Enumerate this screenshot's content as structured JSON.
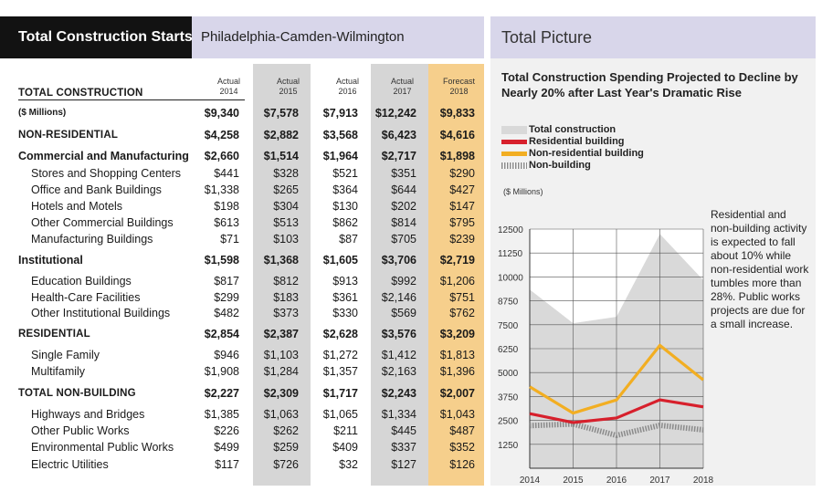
{
  "table": {
    "title": "Total Construction Starts",
    "region": "Philadelphia-Camden-Wilmington",
    "total_construction_label": "TOTAL CONSTRUCTION",
    "columns": [
      {
        "line1": "Actual",
        "line2": "2014"
      },
      {
        "line1": "Actual",
        "line2": "2015"
      },
      {
        "line1": "Actual",
        "line2": "2016"
      },
      {
        "line1": "Actual",
        "line2": "2017"
      },
      {
        "line1": "Forecast",
        "line2": "2018"
      }
    ],
    "rows": [
      {
        "label": "($ Millions)",
        "values": [
          "$9,340",
          "$7,578",
          "$7,913",
          "$12,242",
          "$9,833"
        ]
      },
      {
        "label": "NON-RESIDENTIAL",
        "values": [
          "$4,258",
          "$2,882",
          "$3,568",
          "$6,423",
          "$4,616"
        ]
      },
      {
        "label": "Commercial and Manufacturing",
        "values": [
          "$2,660",
          "$1,514",
          "$1,964",
          "$2,717",
          "$1,898"
        ]
      },
      {
        "label": "Stores and Shopping Centers",
        "values": [
          "$441",
          "$328",
          "$521",
          "$351",
          "$290"
        ]
      },
      {
        "label": "Office and Bank Buildings",
        "values": [
          "$1,338",
          "$265",
          "$364",
          "$644",
          "$427"
        ]
      },
      {
        "label": "Hotels and Motels",
        "values": [
          "$198",
          "$304",
          "$130",
          "$202",
          "$147"
        ]
      },
      {
        "label": "Other Commercial Buildings",
        "values": [
          "$613",
          "$513",
          "$862",
          "$814",
          "$795"
        ]
      },
      {
        "label": "Manufacturing Buildings",
        "values": [
          "$71",
          "$103",
          "$87",
          "$705",
          "$239"
        ]
      },
      {
        "label": "Institutional",
        "values": [
          "$1,598",
          "$1,368",
          "$1,605",
          "$3,706",
          "$2,719"
        ]
      },
      {
        "label": "Education Buildings",
        "values": [
          "$817",
          "$812",
          "$913",
          "$992",
          "$1,206"
        ]
      },
      {
        "label": "Health-Care Facilities",
        "values": [
          "$299",
          "$183",
          "$361",
          "$2,146",
          "$751"
        ]
      },
      {
        "label": "Other Institutional Buildings",
        "values": [
          "$482",
          "$373",
          "$330",
          "$569",
          "$762"
        ]
      },
      {
        "label": "RESIDENTIAL",
        "values": [
          "$2,854",
          "$2,387",
          "$2,628",
          "$3,576",
          "$3,209"
        ]
      },
      {
        "label": "Single Family",
        "values": [
          "$946",
          "$1,103",
          "$1,272",
          "$1,412",
          "$1,813"
        ]
      },
      {
        "label": "Multifamily",
        "values": [
          "$1,908",
          "$1,284",
          "$1,357",
          "$2,163",
          "$1,396"
        ]
      },
      {
        "label": "TOTAL NON-BUILDING",
        "values": [
          "$2,227",
          "$2,309",
          "$1,717",
          "$2,243",
          "$2,007"
        ]
      },
      {
        "label": "Highways and Bridges",
        "values": [
          "$1,385",
          "$1,063",
          "$1,065",
          "$1,334",
          "$1,043"
        ]
      },
      {
        "label": "Other Public Works",
        "values": [
          "$226",
          "$262",
          "$211",
          "$445",
          "$487"
        ]
      },
      {
        "label": "Environmental Public Works",
        "values": [
          "$499",
          "$259",
          "$409",
          "$337",
          "$352"
        ]
      },
      {
        "label": "Electric Utilities",
        "values": [
          "$117",
          "$726",
          "$32",
          "$127",
          "$126"
        ]
      }
    ]
  },
  "panel": {
    "title": "Total Picture",
    "chart_title": "Total Construction Spending Projected to Decline by Nearly 20% after Last Year's Dramatic Rise",
    "units": "($ Millions)",
    "annotation": "Residential and non-building activity is expected to fall about 10% while non-residential work tumbles more than 28%. Public works projects are due for a small increase."
  },
  "chart_data": {
    "type": "line",
    "x": [
      2014,
      2015,
      2016,
      2017,
      2018
    ],
    "x_tick_labels": [
      "2014",
      "2015",
      "2016",
      "2017",
      "2018"
    ],
    "y_tick_labels": [
      "1250",
      "2500",
      "3750",
      "5000",
      "6250",
      "7500",
      "8750",
      "10000",
      "11250",
      "12500"
    ],
    "ylim": [
      0,
      12500
    ],
    "grid": true,
    "legend_position": "top-left",
    "series": [
      {
        "name": "Total construction",
        "kind": "area",
        "color": "#d9d9d9",
        "values": [
          9340,
          7578,
          7913,
          12242,
          9833
        ]
      },
      {
        "name": "Residential building",
        "kind": "line",
        "color": "#d7202c",
        "values": [
          2854,
          2387,
          2628,
          3576,
          3209
        ]
      },
      {
        "name": "Non-residential building",
        "kind": "line",
        "color": "#f2ae22",
        "values": [
          4258,
          2882,
          3568,
          6423,
          4616
        ]
      },
      {
        "name": "Non-building",
        "kind": "hatched",
        "color": "#8a8a8a",
        "values": [
          2227,
          2309,
          1717,
          2243,
          2007
        ]
      }
    ]
  }
}
